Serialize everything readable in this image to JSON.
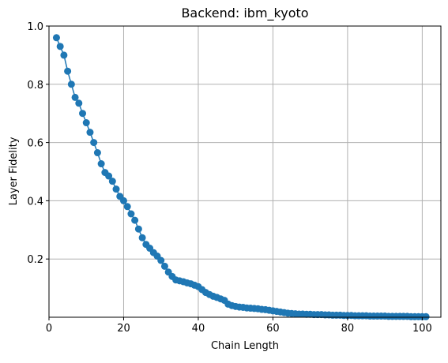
{
  "chart_data": {
    "type": "line",
    "title": "Backend: ibm_kyoto",
    "xlabel": "Chain Length",
    "ylabel": "Layer Fidelity",
    "xlim": [
      0,
      105
    ],
    "ylim": [
      0.0,
      1.0
    ],
    "xticks": [
      "0",
      "20",
      "40",
      "60",
      "80",
      "100"
    ],
    "xtick_values": [
      0,
      20,
      40,
      60,
      80,
      100
    ],
    "yticks": [
      "0.2",
      "0.4",
      "0.6",
      "0.8",
      "1.0"
    ],
    "ytick_values": [
      0.2,
      0.4,
      0.6,
      0.8,
      1.0
    ],
    "grid": true,
    "marker": "circle",
    "color": "#1f77b4",
    "x": [
      2,
      3,
      4,
      5,
      6,
      7,
      8,
      9,
      10,
      11,
      12,
      13,
      14,
      15,
      16,
      17,
      18,
      19,
      20,
      21,
      22,
      23,
      24,
      25,
      26,
      27,
      28,
      29,
      30,
      31,
      32,
      33,
      34,
      35,
      36,
      37,
      38,
      39,
      40,
      41,
      42,
      43,
      44,
      45,
      46,
      47,
      48,
      49,
      50,
      51,
      52,
      53,
      54,
      55,
      56,
      57,
      58,
      59,
      60,
      61,
      62,
      63,
      64,
      65,
      66,
      67,
      68,
      69,
      70,
      71,
      72,
      73,
      74,
      75,
      76,
      77,
      78,
      79,
      80,
      81,
      82,
      83,
      84,
      85,
      86,
      87,
      88,
      89,
      90,
      91,
      92,
      93,
      94,
      95,
      96,
      97,
      98,
      99,
      100,
      101
    ],
    "y": [
      0.96,
      0.93,
      0.9,
      0.845,
      0.8,
      0.755,
      0.735,
      0.7,
      0.668,
      0.635,
      0.6,
      0.565,
      0.527,
      0.497,
      0.485,
      0.467,
      0.44,
      0.415,
      0.4,
      0.38,
      0.355,
      0.333,
      0.303,
      0.273,
      0.25,
      0.237,
      0.222,
      0.21,
      0.195,
      0.175,
      0.155,
      0.14,
      0.128,
      0.125,
      0.122,
      0.118,
      0.115,
      0.11,
      0.105,
      0.095,
      0.085,
      0.078,
      0.072,
      0.068,
      0.063,
      0.058,
      0.045,
      0.04,
      0.037,
      0.035,
      0.034,
      0.032,
      0.031,
      0.03,
      0.029,
      0.027,
      0.026,
      0.024,
      0.022,
      0.02,
      0.018,
      0.016,
      0.014,
      0.013,
      0.012,
      0.011,
      0.011,
      0.01,
      0.01,
      0.009,
      0.009,
      0.009,
      0.008,
      0.008,
      0.007,
      0.007,
      0.007,
      0.006,
      0.006,
      0.006,
      0.005,
      0.005,
      0.005,
      0.005,
      0.004,
      0.004,
      0.004,
      0.004,
      0.004,
      0.003,
      0.003,
      0.003,
      0.003,
      0.003,
      0.003,
      0.002,
      0.002,
      0.002,
      0.002,
      0.002
    ]
  }
}
